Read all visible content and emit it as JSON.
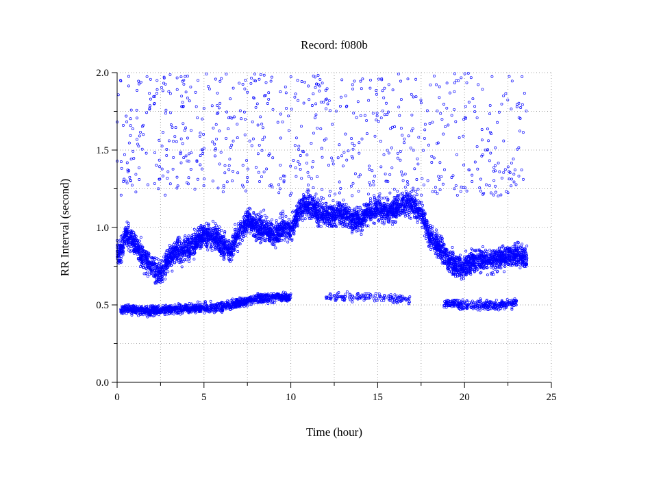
{
  "chart_data": {
    "type": "scatter",
    "title": "Record:  f080b",
    "xlabel": "Time (hour)",
    "ylabel": "RR Interval (second)",
    "xlim": [
      0,
      25
    ],
    "ylim": [
      0.0,
      2.0
    ],
    "x_ticks": [
      "0",
      "5",
      "10",
      "15",
      "20",
      "25"
    ],
    "y_ticks": [
      "0.0",
      "0.5",
      "1.0",
      "1.5",
      "2.0"
    ],
    "grid": true,
    "grid_style": "dotted",
    "marker": "open-circle",
    "point_color": "#0000ff",
    "x_range_of_data": [
      0.0,
      23.6
    ],
    "series": [
      {
        "description_points": "approximate main RR band by hour (x=hour, y=seconds)",
        "x": [
          0.2,
          0.5,
          1.0,
          1.5,
          2.0,
          2.5,
          3.0,
          3.5,
          4.0,
          4.5,
          5.0,
          5.5,
          6.0,
          6.5,
          7.0,
          7.5,
          8.0,
          8.5,
          9.0,
          9.5,
          10.0,
          10.5,
          11.0,
          11.5,
          12.0,
          12.5,
          13.0,
          13.5,
          14.0,
          14.5,
          15.0,
          15.5,
          16.0,
          16.5,
          17.0,
          17.5,
          18.0,
          18.5,
          19.0,
          19.5,
          20.0,
          20.5,
          21.0,
          21.5,
          22.0,
          22.5,
          23.0,
          23.5
        ],
        "y": [
          0.85,
          0.95,
          0.9,
          0.8,
          0.75,
          0.7,
          0.8,
          0.85,
          0.85,
          0.9,
          0.95,
          0.95,
          0.9,
          0.85,
          0.95,
          1.05,
          1.0,
          1.0,
          0.95,
          1.0,
          0.98,
          1.12,
          1.15,
          1.1,
          1.08,
          1.08,
          1.1,
          1.05,
          1.05,
          1.1,
          1.12,
          1.1,
          1.12,
          1.15,
          1.15,
          1.1,
          0.95,
          0.88,
          0.8,
          0.75,
          0.75,
          0.78,
          0.8,
          0.78,
          0.8,
          0.82,
          0.82,
          0.8
        ]
      },
      {
        "description_points": "approximate lower RR band by hour",
        "x": [
          0.2,
          1.0,
          2.0,
          3.0,
          4.0,
          5.0,
          6.0,
          7.0,
          8.0,
          9.0,
          10.0,
          15.0,
          20.0,
          21.0,
          22.0,
          23.0
        ],
        "y": [
          0.47,
          0.47,
          0.46,
          0.47,
          0.48,
          0.48,
          0.49,
          0.51,
          0.54,
          0.55,
          0.55,
          0.55,
          0.5,
          0.5,
          0.5,
          0.52
        ]
      }
    ]
  }
}
